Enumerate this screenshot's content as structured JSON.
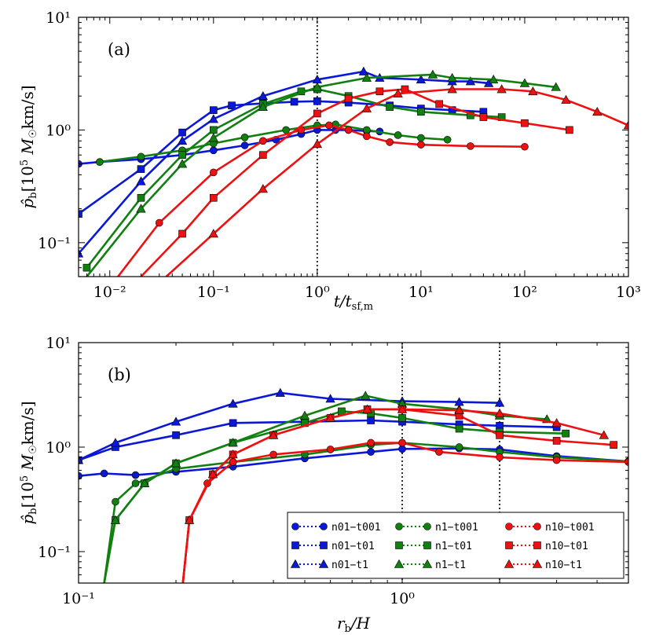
{
  "colors": {
    "n01": "#0a18d8",
    "n1": "#118011",
    "n10": "#ee1111",
    "guide": "#000000"
  },
  "legend": [
    {
      "label": "n01−t001",
      "color": "#0a18d8",
      "marker": "circle"
    },
    {
      "label": "n1−t001",
      "color": "#118011",
      "marker": "circle"
    },
    {
      "label": "n10−t001",
      "color": "#ee1111",
      "marker": "circle"
    },
    {
      "label": "n01−t01",
      "color": "#0a18d8",
      "marker": "square"
    },
    {
      "label": "n1−t01",
      "color": "#118011",
      "marker": "square"
    },
    {
      "label": "n10−t01",
      "color": "#ee1111",
      "marker": "square"
    },
    {
      "label": "n01−t1",
      "color": "#0a18d8",
      "marker": "triangle"
    },
    {
      "label": "n1−t1",
      "color": "#118011",
      "marker": "triangle"
    },
    {
      "label": "n10−t1",
      "color": "#ee1111",
      "marker": "triangle"
    }
  ],
  "chart_data": [
    {
      "panel": "(a)",
      "type": "line",
      "scale": "log-log",
      "xlabel": "t/t_sf,m",
      "ylabel": "p_b [10^5 M_sun km/s]",
      "xlim": [
        0.005,
        1000
      ],
      "ylim": [
        0.05,
        10
      ],
      "x_ticks": [
        "10⁻²",
        "10⁻¹",
        "10⁰",
        "10¹",
        "10²",
        "10³"
      ],
      "y_ticks": [
        "10⁻¹",
        "10⁰",
        "10¹"
      ],
      "vlines": [
        1.0
      ],
      "series": [
        {
          "name": "n01-t001",
          "x": [
            0.005,
            0.008,
            0.02,
            0.05,
            0.1,
            0.2,
            0.4,
            0.7,
            1.0,
            1.5,
            2.0,
            3.0,
            4.0
          ],
          "y": [
            0.5,
            0.52,
            0.55,
            0.6,
            0.66,
            0.73,
            0.82,
            0.92,
            1.0,
            1.0,
            1.0,
            0.98,
            0.97
          ]
        },
        {
          "name": "n01-t01",
          "x": [
            0.005,
            0.02,
            0.05,
            0.1,
            0.15,
            0.3,
            0.6,
            1.0,
            2.0,
            5.0,
            10,
            20,
            40
          ],
          "y": [
            0.18,
            0.45,
            0.95,
            1.5,
            1.65,
            1.72,
            1.78,
            1.8,
            1.75,
            1.65,
            1.55,
            1.5,
            1.45
          ]
        },
        {
          "name": "n01-t1",
          "x": [
            0.005,
            0.02,
            0.05,
            0.1,
            0.3,
            1.0,
            2.8,
            4.0,
            10,
            20,
            30,
            45
          ],
          "y": [
            0.08,
            0.35,
            0.8,
            1.25,
            2.0,
            2.8,
            3.3,
            2.9,
            2.8,
            2.7,
            2.7,
            2.6
          ]
        },
        {
          "name": "n1-t001",
          "x": [
            0.008,
            0.02,
            0.05,
            0.1,
            0.2,
            0.5,
            1.0,
            1.5,
            3.0,
            6.0,
            10,
            18
          ],
          "y": [
            0.52,
            0.58,
            0.66,
            0.76,
            0.86,
            1.0,
            1.1,
            1.12,
            1.0,
            0.9,
            0.85,
            0.82
          ]
        },
        {
          "name": "n1-t01",
          "x": [
            0.006,
            0.02,
            0.05,
            0.1,
            0.3,
            0.7,
            1.0,
            2.0,
            5.0,
            10,
            30,
            60
          ],
          "y": [
            0.06,
            0.25,
            0.6,
            1.0,
            1.7,
            2.2,
            2.3,
            2.0,
            1.6,
            1.45,
            1.35,
            1.3
          ]
        },
        {
          "name": "n1-t1",
          "x": [
            0.006,
            0.02,
            0.05,
            0.1,
            0.3,
            1.0,
            3.0,
            13,
            20,
            50,
            100,
            200
          ],
          "y": [
            0.05,
            0.2,
            0.5,
            0.85,
            1.6,
            2.4,
            2.9,
            3.1,
            2.9,
            2.8,
            2.6,
            2.4
          ]
        },
        {
          "name": "n10-t001",
          "x": [
            0.012,
            0.03,
            0.1,
            0.3,
            0.7,
            1.3,
            2.0,
            3.0,
            5.0,
            10,
            30,
            100
          ],
          "y": [
            0.05,
            0.15,
            0.42,
            0.8,
            1.0,
            1.1,
            1.0,
            0.88,
            0.78,
            0.74,
            0.72,
            0.71
          ]
        },
        {
          "name": "n10-t01",
          "x": [
            0.02,
            0.05,
            0.1,
            0.3,
            1.0,
            2.0,
            4.0,
            7.0,
            15,
            40,
            100,
            270
          ],
          "y": [
            0.05,
            0.12,
            0.25,
            0.6,
            1.4,
            1.9,
            2.2,
            2.3,
            1.7,
            1.3,
            1.15,
            1.0
          ]
        },
        {
          "name": "n10-t1",
          "x": [
            0.035,
            0.1,
            0.3,
            1.0,
            3.0,
            6.0,
            20,
            60,
            120,
            250,
            500,
            1000
          ],
          "y": [
            0.05,
            0.12,
            0.3,
            0.75,
            1.55,
            2.1,
            2.3,
            2.3,
            2.2,
            1.85,
            1.45,
            1.1
          ]
        }
      ]
    },
    {
      "panel": "(b)",
      "type": "line",
      "scale": "log-log",
      "xlabel": "r_b/H",
      "ylabel": "p_b [10^5 M_sun km/s]",
      "xlim": [
        0.1,
        5
      ],
      "ylim": [
        0.05,
        10
      ],
      "x_ticks": [
        "10⁻¹",
        "10⁰"
      ],
      "y_ticks": [
        "10⁻¹",
        "10⁰",
        "10¹"
      ],
      "vlines": [
        1.0,
        2.0
      ],
      "series": [
        {
          "name": "n01-t001",
          "x": [
            0.1,
            0.12,
            0.15,
            0.2,
            0.3,
            0.5,
            0.8,
            1.0,
            1.5,
            2.0,
            3.0,
            5.0
          ],
          "y": [
            0.53,
            0.56,
            0.54,
            0.58,
            0.65,
            0.78,
            0.9,
            0.96,
            0.97,
            0.95,
            0.82,
            0.73
          ]
        },
        {
          "name": "n01-t01",
          "x": [
            0.1,
            0.13,
            0.2,
            0.3,
            0.5,
            0.8,
            1.0,
            1.5,
            2.0,
            3.0
          ],
          "y": [
            0.75,
            1.0,
            1.3,
            1.7,
            1.75,
            1.8,
            1.75,
            1.65,
            1.6,
            1.55
          ]
        },
        {
          "name": "n01-t1",
          "x": [
            0.1,
            0.13,
            0.2,
            0.3,
            0.42,
            0.6,
            1.0,
            1.5,
            2.0
          ],
          "y": [
            0.75,
            1.1,
            1.75,
            2.6,
            3.3,
            2.9,
            2.75,
            2.7,
            2.65
          ]
        },
        {
          "name": "n1-t001",
          "x": [
            0.12,
            0.13,
            0.15,
            0.2,
            0.3,
            0.5,
            0.8,
            1.0,
            1.5,
            2.0,
            3.0,
            5.0
          ],
          "y": [
            0.05,
            0.3,
            0.45,
            0.62,
            0.72,
            0.85,
            1.05,
            1.1,
            1.0,
            0.9,
            0.8,
            0.73
          ]
        },
        {
          "name": "n1-t01",
          "x": [
            0.12,
            0.13,
            0.16,
            0.2,
            0.3,
            0.5,
            0.65,
            0.8,
            1.0,
            1.5,
            2.0,
            3.2
          ],
          "y": [
            0.05,
            0.2,
            0.45,
            0.7,
            1.1,
            1.7,
            2.2,
            2.1,
            1.9,
            1.5,
            1.4,
            1.35
          ]
        },
        {
          "name": "n1-t1",
          "x": [
            0.12,
            0.13,
            0.16,
            0.2,
            0.3,
            0.5,
            0.77,
            1.0,
            1.5,
            2.0,
            2.8
          ],
          "y": [
            0.05,
            0.2,
            0.45,
            0.7,
            1.1,
            2.0,
            3.1,
            2.6,
            2.3,
            2.0,
            1.85
          ]
        },
        {
          "name": "n10-t001",
          "x": [
            0.21,
            0.22,
            0.25,
            0.3,
            0.4,
            0.6,
            0.8,
            1.0,
            1.3,
            2.0,
            3.0,
            5.0
          ],
          "y": [
            0.05,
            0.2,
            0.45,
            0.72,
            0.85,
            0.95,
            1.1,
            1.1,
            0.9,
            0.8,
            0.75,
            0.72
          ]
        },
        {
          "name": "n10-t01",
          "x": [
            0.21,
            0.22,
            0.26,
            0.3,
            0.4,
            0.6,
            0.78,
            1.0,
            1.5,
            2.0,
            3.0,
            4.5
          ],
          "y": [
            0.05,
            0.2,
            0.55,
            0.85,
            1.3,
            1.9,
            2.3,
            2.3,
            2.0,
            1.3,
            1.15,
            1.05
          ]
        },
        {
          "name": "n10-t1",
          "x": [
            0.21,
            0.22,
            0.26,
            0.3,
            0.4,
            0.6,
            0.78,
            1.0,
            1.5,
            2.0,
            3.0,
            4.2
          ],
          "y": [
            0.05,
            0.2,
            0.55,
            0.85,
            1.3,
            1.9,
            2.3,
            2.3,
            2.25,
            2.1,
            1.7,
            1.3
          ]
        }
      ]
    }
  ]
}
